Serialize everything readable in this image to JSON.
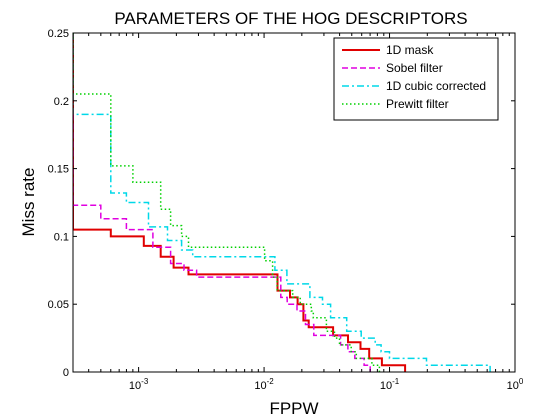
{
  "chart_data": {
    "type": "line",
    "title": "PARAMETERS OF THE HOG DESCRIPTORS",
    "xlabel": "FPPW",
    "ylabel": "Miss rate",
    "xscale": "log",
    "xlim": [
      0.0003,
      1
    ],
    "ylim": [
      0,
      0.25
    ],
    "yticks": [
      {
        "value": 0,
        "label": "0"
      },
      {
        "value": 0.05,
        "label": "0.05"
      },
      {
        "value": 0.1,
        "label": "0.1"
      },
      {
        "value": 0.15,
        "label": "0.15"
      },
      {
        "value": 0.2,
        "label": "0.2"
      },
      {
        "value": 0.25,
        "label": "0.25"
      }
    ],
    "xticks": [
      {
        "value": 0.001,
        "base": "10",
        "exp": "-3"
      },
      {
        "value": 0.01,
        "base": "10",
        "exp": "-2"
      },
      {
        "value": 0.1,
        "base": "10",
        "exp": "-1"
      },
      {
        "value": 1,
        "base": "10",
        "exp": "0"
      }
    ],
    "grid": false,
    "legend_position": "top-right",
    "series": [
      {
        "name": "1D mask",
        "color": "#e00000",
        "dash": "solid",
        "points": [
          [
            0.0003,
            0.25
          ],
          [
            0.0003,
            0.105
          ],
          [
            0.0006,
            0.105
          ],
          [
            0.0006,
            0.1
          ],
          [
            0.0011,
            0.1
          ],
          [
            0.0011,
            0.093
          ],
          [
            0.0015,
            0.093
          ],
          [
            0.0015,
            0.085
          ],
          [
            0.0019,
            0.085
          ],
          [
            0.0019,
            0.077
          ],
          [
            0.0025,
            0.077
          ],
          [
            0.0025,
            0.072
          ],
          [
            0.0128,
            0.072
          ],
          [
            0.0128,
            0.06
          ],
          [
            0.0161,
            0.06
          ],
          [
            0.0161,
            0.055
          ],
          [
            0.0185,
            0.055
          ],
          [
            0.0185,
            0.05
          ],
          [
            0.0206,
            0.05
          ],
          [
            0.0206,
            0.038
          ],
          [
            0.0227,
            0.038
          ],
          [
            0.0227,
            0.033
          ],
          [
            0.0355,
            0.033
          ],
          [
            0.0355,
            0.027
          ],
          [
            0.0467,
            0.027
          ],
          [
            0.0467,
            0.022
          ],
          [
            0.0587,
            0.022
          ],
          [
            0.0587,
            0.017
          ],
          [
            0.0688,
            0.017
          ],
          [
            0.0688,
            0.01
          ],
          [
            0.0869,
            0.01
          ],
          [
            0.0869,
            0.005
          ],
          [
            0.133,
            0.005
          ],
          [
            0.133,
            0
          ]
        ]
      },
      {
        "name": "Sobel filter",
        "color": "#e000e0",
        "dash": "dashed",
        "points": [
          [
            0.0003,
            0.19
          ],
          [
            0.0003,
            0.123
          ],
          [
            0.0005,
            0.123
          ],
          [
            0.0005,
            0.113
          ],
          [
            0.0008,
            0.113
          ],
          [
            0.0008,
            0.105
          ],
          [
            0.0013,
            0.105
          ],
          [
            0.0013,
            0.092
          ],
          [
            0.0018,
            0.092
          ],
          [
            0.0018,
            0.08
          ],
          [
            0.0023,
            0.08
          ],
          [
            0.0023,
            0.075
          ],
          [
            0.0029,
            0.075
          ],
          [
            0.0029,
            0.07
          ],
          [
            0.0136,
            0.07
          ],
          [
            0.0136,
            0.055
          ],
          [
            0.0153,
            0.055
          ],
          [
            0.0153,
            0.05
          ],
          [
            0.0183,
            0.05
          ],
          [
            0.0183,
            0.045
          ],
          [
            0.0214,
            0.045
          ],
          [
            0.0214,
            0.035
          ],
          [
            0.0249,
            0.035
          ],
          [
            0.0249,
            0.027
          ],
          [
            0.0407,
            0.027
          ],
          [
            0.0407,
            0.02
          ],
          [
            0.0466,
            0.02
          ],
          [
            0.0466,
            0.015
          ],
          [
            0.0529,
            0.015
          ],
          [
            0.0529,
            0.01
          ],
          [
            0.0627,
            0.01
          ],
          [
            0.0627,
            0.005
          ],
          [
            0.0701,
            0.005
          ],
          [
            0.0701,
            0
          ]
        ]
      },
      {
        "name": "1D cubic corrected",
        "color": "#00d8e8",
        "dash": "dashdot",
        "points": [
          [
            0.0003,
            0.25
          ],
          [
            0.0003,
            0.19
          ],
          [
            0.0006,
            0.19
          ],
          [
            0.0006,
            0.132
          ],
          [
            0.0008,
            0.132
          ],
          [
            0.0008,
            0.125
          ],
          [
            0.0012,
            0.125
          ],
          [
            0.0012,
            0.107
          ],
          [
            0.0017,
            0.107
          ],
          [
            0.0017,
            0.097
          ],
          [
            0.0022,
            0.097
          ],
          [
            0.0022,
            0.09
          ],
          [
            0.0027,
            0.09
          ],
          [
            0.0027,
            0.085
          ],
          [
            0.0122,
            0.085
          ],
          [
            0.0122,
            0.075
          ],
          [
            0.0152,
            0.075
          ],
          [
            0.0152,
            0.065
          ],
          [
            0.0232,
            0.065
          ],
          [
            0.0232,
            0.055
          ],
          [
            0.0292,
            0.055
          ],
          [
            0.0292,
            0.05
          ],
          [
            0.0339,
            0.05
          ],
          [
            0.0339,
            0.04
          ],
          [
            0.0456,
            0.04
          ],
          [
            0.0456,
            0.03
          ],
          [
            0.0594,
            0.03
          ],
          [
            0.0594,
            0.025
          ],
          [
            0.0768,
            0.025
          ],
          [
            0.0768,
            0.02
          ],
          [
            0.0857,
            0.02
          ],
          [
            0.0857,
            0.015
          ],
          [
            0.1,
            0.015
          ],
          [
            0.1,
            0.01
          ],
          [
            0.197,
            0.01
          ],
          [
            0.197,
            0.005
          ],
          [
            0.633,
            0.005
          ],
          [
            0.633,
            0
          ]
        ]
      },
      {
        "name": "Prewitt filter",
        "color": "#00d000",
        "dash": "dotted",
        "points": [
          [
            0.0003,
            0.25
          ],
          [
            0.0003,
            0.205
          ],
          [
            0.0006,
            0.205
          ],
          [
            0.0006,
            0.152
          ],
          [
            0.0009,
            0.152
          ],
          [
            0.0009,
            0.14
          ],
          [
            0.0015,
            0.14
          ],
          [
            0.0015,
            0.12
          ],
          [
            0.0018,
            0.12
          ],
          [
            0.0018,
            0.108
          ],
          [
            0.0022,
            0.108
          ],
          [
            0.0022,
            0.1
          ],
          [
            0.0025,
            0.1
          ],
          [
            0.0025,
            0.092
          ],
          [
            0.0101,
            0.092
          ],
          [
            0.0101,
            0.082
          ],
          [
            0.0117,
            0.082
          ],
          [
            0.0117,
            0.07
          ],
          [
            0.0127,
            0.07
          ],
          [
            0.0127,
            0.06
          ],
          [
            0.0169,
            0.06
          ],
          [
            0.0169,
            0.055
          ],
          [
            0.0194,
            0.055
          ],
          [
            0.0194,
            0.05
          ],
          [
            0.0238,
            0.05
          ],
          [
            0.0238,
            0.045
          ],
          [
            0.0247,
            0.045
          ],
          [
            0.0247,
            0.04
          ],
          [
            0.0314,
            0.04
          ],
          [
            0.0314,
            0.03
          ],
          [
            0.0364,
            0.03
          ],
          [
            0.0364,
            0.025
          ],
          [
            0.0399,
            0.025
          ],
          [
            0.0399,
            0.02
          ],
          [
            0.0495,
            0.02
          ],
          [
            0.0495,
            0.015
          ],
          [
            0.0543,
            0.015
          ],
          [
            0.0543,
            0.01
          ],
          [
            0.0724,
            0.01
          ],
          [
            0.0724,
            0.005
          ],
          [
            0.083,
            0.005
          ],
          [
            0.083,
            0
          ]
        ]
      }
    ]
  }
}
